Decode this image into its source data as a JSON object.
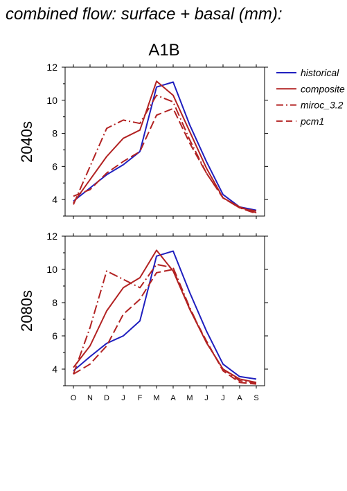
{
  "header": {
    "title": "combined flow: surface + basal (mm):",
    "scenario": "A1B"
  },
  "legend": {
    "items": [
      {
        "label": "historical",
        "color": "#1f1fbf",
        "dash": "solid"
      },
      {
        "label": "composite",
        "color": "#b22222",
        "dash": "solid"
      },
      {
        "label": "miroc_3.2",
        "color": "#b22222",
        "dash": "dashdot"
      },
      {
        "label": "pcm1",
        "color": "#b22222",
        "dash": "dashed"
      }
    ]
  },
  "chart_data": [
    {
      "type": "line",
      "title": "A1B",
      "ylabel": "2040s",
      "categories": [
        "O",
        "N",
        "D",
        "J",
        "F",
        "M",
        "A",
        "M",
        "J",
        "J",
        "A",
        "S"
      ],
      "ylim": [
        3,
        12
      ],
      "yticks": [
        4,
        6,
        8,
        10,
        12
      ],
      "series": [
        {
          "name": "historical",
          "values": [
            3.9,
            4.7,
            5.5,
            6.1,
            6.9,
            10.8,
            11.1,
            8.5,
            6.3,
            4.3,
            3.55,
            3.35
          ]
        },
        {
          "name": "composite",
          "values": [
            3.8,
            5.2,
            6.6,
            7.7,
            8.2,
            11.15,
            10.3,
            8.1,
            5.9,
            4.1,
            3.55,
            3.2
          ]
        },
        {
          "name": "miroc_3.2",
          "values": [
            3.7,
            6.0,
            8.3,
            8.8,
            8.6,
            10.3,
            9.9,
            7.6,
            5.6,
            4.1,
            3.5,
            3.15
          ]
        },
        {
          "name": "pcm1",
          "values": [
            4.2,
            4.6,
            5.6,
            6.3,
            6.9,
            9.1,
            9.5,
            7.4,
            5.6,
            4.1,
            3.5,
            3.3
          ]
        }
      ]
    },
    {
      "type": "line",
      "title": "",
      "ylabel": "2080s",
      "categories": [
        "O",
        "N",
        "D",
        "J",
        "F",
        "M",
        "A",
        "M",
        "J",
        "J",
        "A",
        "S"
      ],
      "ylim": [
        3,
        12
      ],
      "yticks": [
        4,
        6,
        8,
        10,
        12
      ],
      "series": [
        {
          "name": "historical",
          "values": [
            3.9,
            4.75,
            5.55,
            6.0,
            6.9,
            10.8,
            11.1,
            8.6,
            6.3,
            4.3,
            3.55,
            3.4
          ]
        },
        {
          "name": "composite",
          "values": [
            4.1,
            5.4,
            7.5,
            8.9,
            9.5,
            11.15,
            9.9,
            7.6,
            5.6,
            4.0,
            3.4,
            3.2
          ]
        },
        {
          "name": "miroc_3.2",
          "values": [
            3.7,
            6.5,
            9.9,
            9.4,
            8.9,
            10.3,
            10.1,
            7.7,
            5.6,
            4.0,
            3.3,
            3.15
          ]
        },
        {
          "name": "pcm1",
          "values": [
            3.7,
            4.3,
            5.4,
            7.3,
            8.2,
            9.8,
            10.0,
            7.6,
            5.7,
            3.9,
            3.2,
            3.1
          ]
        }
      ]
    }
  ]
}
